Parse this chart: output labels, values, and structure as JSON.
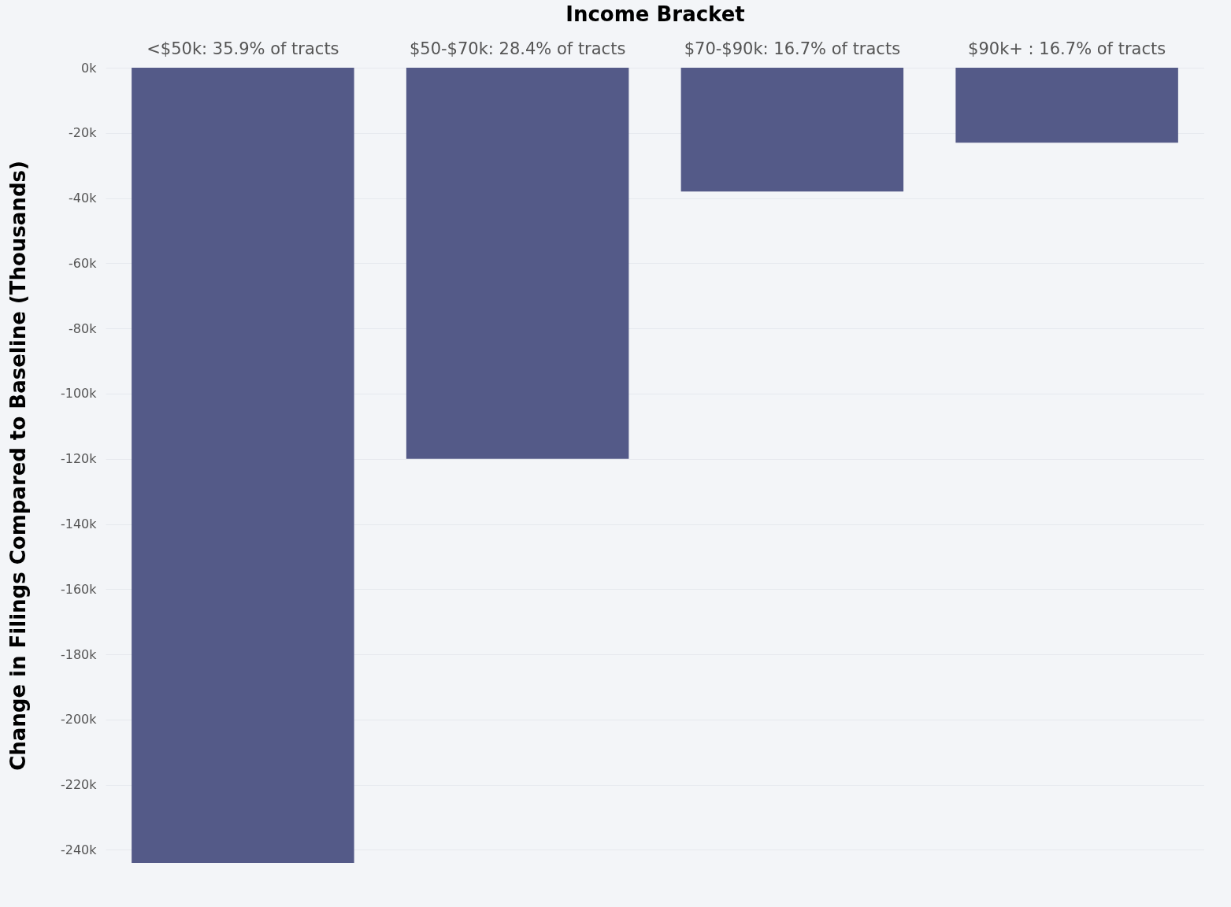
{
  "chart_data": {
    "type": "bar",
    "xlabel": "Income Bracket",
    "ylabel": "Change in Filings Compared to Baseline (Thousands)",
    "categories": [
      "<$50k: 35.9% of tracts",
      "$50-$70k: 28.4% of tracts",
      "$70-$90k: 16.7% of tracts",
      "$90k+ : 16.7% of tracts"
    ],
    "values": [
      -244,
      -120,
      -38,
      -23
    ],
    "color": "#545a88",
    "ylim": [
      -244,
      0
    ],
    "yticks": [
      {
        "value": 0,
        "label": "0k"
      },
      {
        "value": -20,
        "label": "-20k"
      },
      {
        "value": -40,
        "label": "-40k"
      },
      {
        "value": -60,
        "label": "-60k"
      },
      {
        "value": -80,
        "label": "-80k"
      },
      {
        "value": -100,
        "label": "-100k"
      },
      {
        "value": -120,
        "label": "-120k"
      },
      {
        "value": -140,
        "label": "-140k"
      },
      {
        "value": -160,
        "label": "-160k"
      },
      {
        "value": -180,
        "label": "-180k"
      },
      {
        "value": -200,
        "label": "-200k"
      },
      {
        "value": -220,
        "label": "-220k"
      },
      {
        "value": -240,
        "label": "-240k"
      }
    ],
    "grid": "y"
  }
}
